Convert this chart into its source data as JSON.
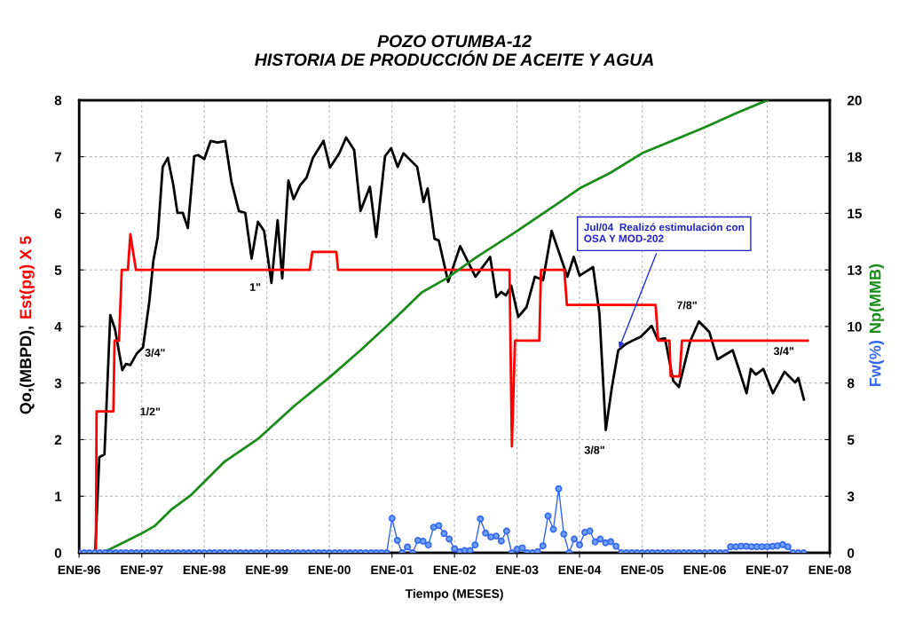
{
  "chart_data": {
    "type": "line",
    "title": "POZO OTUMBA-12\nHISTORIA DE PRODUCCIÓN DE ACEITE Y AGUA",
    "xlabel": "Tiempo (MESES)",
    "ylabel": [
      "Qo,(MBPD),",
      "Est(pg) X 5"
    ],
    "y2label": [
      "Fw(%)",
      "Np(MMB)"
    ],
    "xlim": [
      "1996-01-01",
      "2008-01-01"
    ],
    "xticks": [
      {
        "value": "1996-01-01",
        "label": "ENE-96"
      },
      {
        "value": "1997-01-01",
        "label": "ENE-97"
      },
      {
        "value": "1998-01-01",
        "label": "ENE-98"
      },
      {
        "value": "1999-01-01",
        "label": "ENE-99"
      },
      {
        "value": "2000-01-01",
        "label": "ENE-00"
      },
      {
        "value": "2001-01-01",
        "label": "ENE-01"
      },
      {
        "value": "2002-01-01",
        "label": "ENE-02"
      },
      {
        "value": "2003-01-01",
        "label": "ENE-03"
      },
      {
        "value": "2004-01-01",
        "label": "ENE-04"
      },
      {
        "value": "2005-01-01",
        "label": "ENE-05"
      },
      {
        "value": "2006-01-01",
        "label": "ENE-06"
      },
      {
        "value": "2007-01-01",
        "label": "ENE-07"
      },
      {
        "value": "2008-01-01",
        "label": "ENE-08"
      }
    ],
    "ylim": [
      0,
      8
    ],
    "yticks": [
      0,
      1,
      2,
      3,
      4,
      5,
      6,
      7,
      8
    ],
    "y2lim": [
      0,
      20
    ],
    "y2ticks": [
      0,
      {
        "value": 2.5,
        "label": "3"
      },
      5,
      {
        "value": 7.5,
        "label": "8"
      },
      10,
      {
        "value": 12.5,
        "label": "13"
      },
      15,
      {
        "value": 17.5,
        "label": "18"
      },
      20
    ],
    "grid": true,
    "series": [
      {
        "color": "#000000",
        "marker": "none",
        "x": [
          "1996-04-04",
          "1996-04-28",
          "1996-05-28",
          "1996-07-01",
          "1996-07-28",
          "1996-09-09",
          "1996-10-01",
          "1996-10-26",
          "1996-12-02",
          "1997-01-08",
          "1997-02-14",
          "1997-03-09",
          "1997-04-04",
          "1997-05-03",
          "1997-06-02",
          "1997-07-04",
          "1997-07-28",
          "1997-08-28",
          "1997-09-27",
          "1997-11-03",
          "1997-11-25",
          "1998-01-01",
          "1998-02-07",
          "1998-03-20",
          "1998-05-03",
          "1998-06-09",
          "1998-07-22",
          "1998-08-28",
          "1998-10-04",
          "1998-11-10",
          "1998-12-16",
          "1999-01-28",
          "1999-03-05",
          "1999-04-01",
          "1999-05-07",
          "1999-06-06",
          "1999-07-15",
          "1999-08-21",
          "1999-09-27",
          "1999-11-28",
          "2000-01-05",
          "2000-02-28",
          "2000-04-08",
          "2000-05-25",
          "2000-07-01",
          "2000-08-25",
          "2000-10-01",
          "2000-11-21",
          "2000-12-27",
          "2001-02-03",
          "2001-03-09",
          "2001-05-28",
          "2001-07-04",
          "2001-07-28",
          "2001-09-06",
          "2001-10-01",
          "2001-11-25",
          "2002-02-03",
          "2002-05-03",
          "2002-07-28",
          "2002-09-02",
          "2002-10-01",
          "2002-10-28",
          "2002-11-28",
          "2003-01-08",
          "2003-02-25",
          "2003-04-15",
          "2003-06-02",
          "2003-07-22",
          "2003-10-22",
          "2003-11-28",
          "2004-01-01",
          "2004-03-20",
          "2004-04-26",
          "2004-06-02",
          "2004-07-08",
          "2004-08-14",
          "2004-09-27",
          "2004-11-18",
          "2004-12-24",
          "2005-02-25",
          "2005-04-01",
          "2005-05-14",
          "2005-07-01",
          "2005-08-03",
          "2005-10-08",
          "2005-11-28",
          "2006-01-28",
          "2006-03-16",
          "2006-06-13",
          "2006-07-19",
          "2006-09-02",
          "2006-09-27",
          "2006-10-26",
          "2006-12-09",
          "2007-02-03",
          "2007-04-12",
          "2007-06-13",
          "2007-07-01",
          "2007-08-03"
        ],
        "values": [
          0,
          1.69,
          1.74,
          4.2,
          3.96,
          3.23,
          3.34,
          3.32,
          3.52,
          3.63,
          4.44,
          5.15,
          5.58,
          6.82,
          6.98,
          6.5,
          6.01,
          6.01,
          5.74,
          7.01,
          7.03,
          6.96,
          7.28,
          7.25,
          7.28,
          6.55,
          6.04,
          6.01,
          5.2,
          5.85,
          5.69,
          4.77,
          5.88,
          4.85,
          6.58,
          6.25,
          6.5,
          6.63,
          6.98,
          7.28,
          6.81,
          7.06,
          7.34,
          7.12,
          6.04,
          6.47,
          5.58,
          7.01,
          7.15,
          6.82,
          7.06,
          6.82,
          6.2,
          6.44,
          5.55,
          5.52,
          4.79,
          5.42,
          4.88,
          5.23,
          4.52,
          4.61,
          4.55,
          4.72,
          4.17,
          4.34,
          4.88,
          4.82,
          5.69,
          4.88,
          5.23,
          4.9,
          5.05,
          4.23,
          2.17,
          2.93,
          3.58,
          3.69,
          3.77,
          3.82,
          4.01,
          3.77,
          3.79,
          3.04,
          2.93,
          3.74,
          4.09,
          3.9,
          3.42,
          3.58,
          3.25,
          2.82,
          3.25,
          3.15,
          3.25,
          2.82,
          3.2,
          3.01,
          3.09,
          2.71
        ]
      },
      {
        "color": "#ff0000",
        "marker": "none",
        "x": [
          "1996-04-08",
          "1996-04-12",
          "1996-07-19",
          "1996-07-26",
          "1996-08-21",
          "1996-09-06",
          "1996-10-12",
          "1996-10-26",
          "1996-11-28",
          "1999-09-09",
          "1999-09-24",
          "2000-02-11",
          "2000-02-21",
          "2002-11-18",
          "2002-12-02",
          "2002-12-20",
          "2003-05-11",
          "2003-05-21",
          "2003-10-04",
          "2003-10-19",
          "2005-03-20",
          "2005-04-04",
          "2005-06-09",
          "2005-06-16",
          "2005-08-07",
          "2005-08-21",
          "2007-08-25"
        ],
        "values": [
          0,
          2.5,
          2.5,
          3.75,
          3.75,
          5.0,
          5.0,
          5.63,
          5.0,
          5.0,
          5.32,
          5.32,
          5.0,
          5.0,
          1.88,
          3.75,
          3.75,
          5.0,
          5.0,
          4.38,
          4.38,
          3.75,
          3.75,
          3.12,
          3.12,
          3.75,
          3.75
        ]
      },
      {
        "color": "#1a8c1a",
        "marker": "none",
        "axis": "y2",
        "x": [
          "1996-05-18",
          "1996-12-27",
          "1997-03-16",
          "1997-06-24",
          "1997-10-12",
          "1998-04-26",
          "1998-11-10",
          "1999-06-13",
          "2000-01-01",
          "2000-07-01",
          "2001-01-01",
          "2001-06-24",
          "2001-11-14",
          "2002-05-11",
          "2003-01-01",
          "2003-09-09",
          "2004-01-01",
          "2004-06-27",
          "2005-01-01",
          "2006-01-01",
          "2006-07-01",
          "2007-01-01"
        ],
        "values": [
          0,
          0.84,
          1.18,
          1.92,
          2.53,
          4.01,
          5.03,
          6.51,
          7.75,
          8.95,
          10.23,
          11.51,
          12.12,
          13.07,
          14.22,
          15.5,
          16.1,
          16.78,
          17.66,
          18.8,
          19.42,
          20
        ]
      },
      {
        "color": "#3366ee",
        "marker": "circle",
        "axis": "y2",
        "x": [
          "1996-01",
          "1996-02",
          "1996-03",
          "1996-04",
          "1996-05",
          "1996-06",
          "1996-07",
          "1996-08",
          "1996-09",
          "1996-10",
          "1996-11",
          "1996-12",
          "1997-01",
          "1997-02",
          "1997-03",
          "1997-04",
          "1997-05",
          "1997-06",
          "1997-07",
          "1997-08",
          "1997-09",
          "1997-10",
          "1997-11",
          "1997-12",
          "1998-01",
          "1998-02",
          "1998-03",
          "1998-04",
          "1998-05",
          "1998-06",
          "1998-07",
          "1998-08",
          "1998-09",
          "1998-10",
          "1998-11",
          "1998-12",
          "1999-01",
          "1999-02",
          "1999-03",
          "1999-04",
          "1999-05",
          "1999-06",
          "1999-07",
          "1999-08",
          "1999-09",
          "1999-10",
          "1999-11",
          "1999-12",
          "2000-01",
          "2000-02",
          "2000-03",
          "2000-04",
          "2000-05",
          "2000-06",
          "2000-07",
          "2000-08",
          "2000-09",
          "2000-10",
          "2000-11",
          "2000-12",
          "2001-01",
          "2001-02",
          "2001-03",
          "2001-04",
          "2001-05",
          "2001-06",
          "2001-07",
          "2001-08",
          "2001-09",
          "2001-10",
          "2001-11",
          "2001-12",
          "2002-01",
          "2002-02",
          "2002-03",
          "2002-04",
          "2002-05",
          "2002-06",
          "2002-07",
          "2002-08",
          "2002-09",
          "2002-10",
          "2002-11",
          "2002-12",
          "2003-01",
          "2003-02",
          "2003-03",
          "2003-04",
          "2003-05",
          "2003-06",
          "2003-07",
          "2003-08",
          "2003-09",
          "2003-10",
          "2003-11",
          "2003-12",
          "2004-01",
          "2004-02",
          "2004-03",
          "2004-04",
          "2004-05",
          "2004-06",
          "2004-07",
          "2004-08",
          "2004-09",
          "2004-10",
          "2004-11",
          "2004-12",
          "2005-01",
          "2005-02",
          "2005-03",
          "2005-04",
          "2005-05",
          "2005-06",
          "2005-07",
          "2005-08",
          "2005-09",
          "2005-10",
          "2005-11",
          "2005-12",
          "2006-01",
          "2006-02",
          "2006-03",
          "2006-04",
          "2006-05",
          "2006-06",
          "2006-07",
          "2006-08",
          "2006-09",
          "2006-10",
          "2006-11",
          "2006-12",
          "2007-01",
          "2007-02",
          "2007-03",
          "2007-04",
          "2007-05",
          "2007-06",
          "2007-07",
          "2007-08"
        ],
        "values": [
          0,
          0,
          0,
          0,
          0,
          0,
          0,
          0,
          0,
          0,
          0,
          0,
          0,
          0,
          0,
          0,
          0,
          0,
          0,
          0,
          0,
          0,
          0,
          0,
          0,
          0,
          0,
          0,
          0,
          0,
          0,
          0,
          0,
          0,
          0,
          0,
          0,
          0,
          0,
          0,
          0,
          0,
          0,
          0,
          0,
          0,
          0,
          0,
          0,
          0,
          0,
          0,
          0,
          0,
          0,
          0,
          0,
          0,
          0,
          0,
          1.52,
          0.55,
          0,
          0.26,
          0,
          0.55,
          0.51,
          0.35,
          1.13,
          1.2,
          0.85,
          0.61,
          0.18,
          0.05,
          0.1,
          0.1,
          0.35,
          1.5,
          0.87,
          0.7,
          0.74,
          0.52,
          0.96,
          0,
          0.16,
          0.22,
          0,
          0,
          0.05,
          0.31,
          1.63,
          1.04,
          2.83,
          0.83,
          0,
          0.61,
          0.35,
          0.9,
          0.96,
          0.48,
          0.61,
          0.44,
          0.49,
          0.29,
          0,
          0,
          0,
          0,
          0,
          0,
          0,
          0,
          0,
          0,
          0,
          0,
          0,
          0,
          0,
          0,
          0,
          0,
          0,
          0,
          0,
          0.27,
          0.27,
          0.29,
          0.29,
          0.27,
          0.27,
          0.27,
          0.27,
          0.29,
          0.31,
          0.36,
          0.27,
          0,
          0,
          0
        ]
      }
    ],
    "annotations": [
      "1/2\"",
      "3/4\"",
      "1\"",
      "3/8\"",
      "7/8\"",
      "3/4\"",
      {
        "text": "Jul/04  Realizó estimulación con\nOSA Y MOD-202",
        "x": "2004-08-14",
        "y": 3.58
      }
    ]
  }
}
